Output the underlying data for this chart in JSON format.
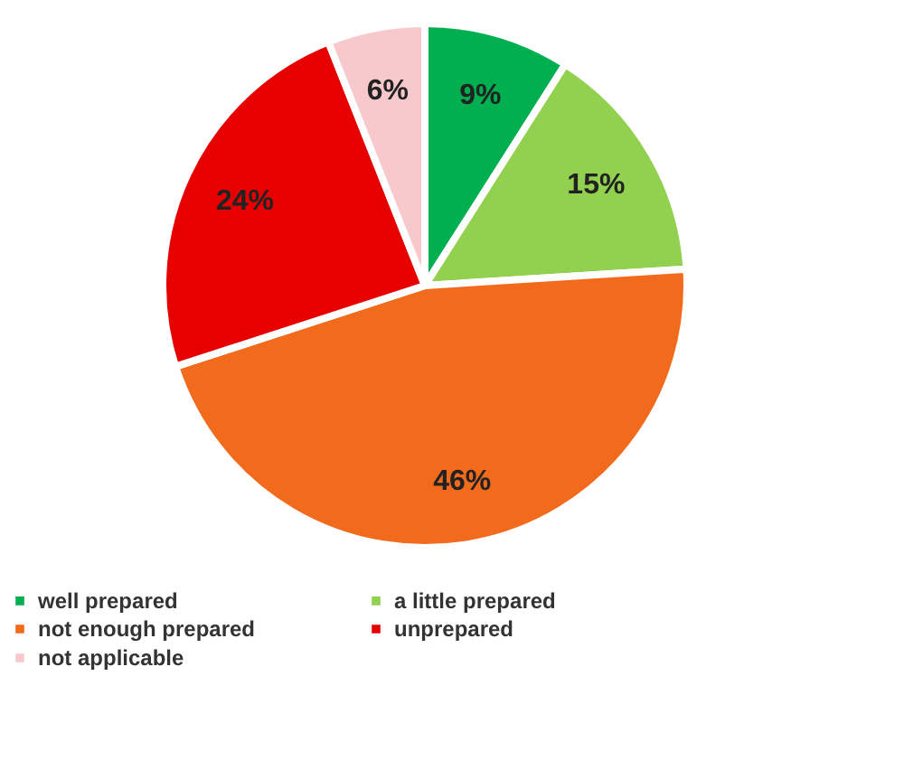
{
  "chart_data": {
    "type": "pie",
    "categories": [
      "well prepared",
      "a little prepared",
      "not enough prepared",
      "unprepared",
      "not applicable"
    ],
    "values": [
      9,
      15,
      46,
      24,
      6
    ],
    "colors": [
      "#00b050",
      "#92d050",
      "#f26b1d",
      "#e60000",
      "#f7c9cc"
    ],
    "value_labels": [
      "9%",
      "15%",
      "46%",
      "24%",
      "6%"
    ],
    "legend": "bottom"
  }
}
